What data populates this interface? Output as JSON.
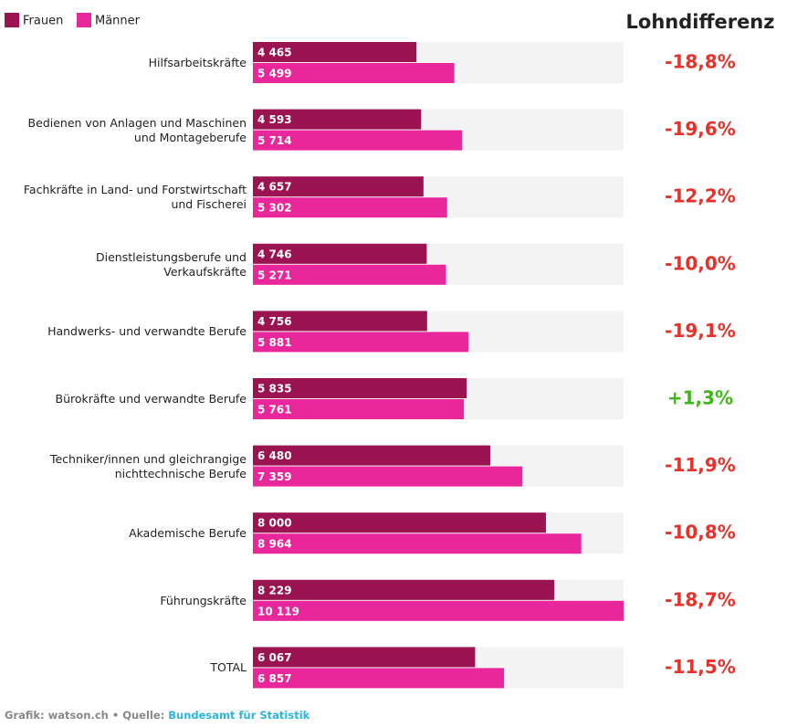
{
  "chart_data": {
    "type": "bar",
    "orientation": "horizontal",
    "title": "Lohndifferenz",
    "categories": [
      "Hilfsarbeitskräfte",
      "Bedienen von Anlagen und Maschinen\nund Montageberufe",
      "Fachkräfte in Land- und Forstwirtschaft\nund Fischerei",
      "Dienstleistungsberufe und\nVerkaufskräfte",
      "Handwerks- und verwandte Berufe",
      "Bürokräfte und verwandte Berufe",
      "Techniker/innen und gleichrangige\nnichttechnische Berufe",
      "Akademische Berufe",
      "Führungskräfte",
      "TOTAL"
    ],
    "series": [
      {
        "name": "Frauen",
        "color": "#9b1451",
        "values": [
          4465,
          4593,
          4657,
          4746,
          4756,
          5835,
          6480,
          8000,
          8229,
          6067
        ],
        "value_labels": [
          "4 465",
          "4 593",
          "4 657",
          "4 746",
          "4 756",
          "5 835",
          "6 480",
          "8 000",
          "8 229",
          "6 067"
        ]
      },
      {
        "name": "Männer",
        "color": "#e8279a",
        "values": [
          5499,
          5714,
          5302,
          5271,
          5881,
          5761,
          7359,
          8964,
          10119,
          6857
        ],
        "value_labels": [
          "5 499",
          "5 714",
          "5 302",
          "5 271",
          "5 881",
          "5 761",
          "7 359",
          "8 964",
          "10 119",
          "6 857"
        ]
      }
    ],
    "differences": [
      -18.8,
      -19.6,
      -12.2,
      -10.0,
      -19.1,
      1.3,
      -11.9,
      -10.8,
      -18.7,
      -11.5
    ],
    "difference_labels": [
      "-18,8%",
      "-19,6%",
      "-12,2%",
      "-10,0%",
      "-19,1%",
      "+1,3%",
      "-11,9%",
      "-10,8%",
      "-18,7%",
      "-11,5%"
    ],
    "negative_color": "#e8312a",
    "positive_color": "#3fb618",
    "track_color": "#f3f3f3",
    "xlim": [
      0,
      10119
    ],
    "legend": "top-left"
  },
  "footer": {
    "prefix": "Grafik: watson.ch • Quelle:",
    "link": "Bundesamt für Statistik"
  }
}
